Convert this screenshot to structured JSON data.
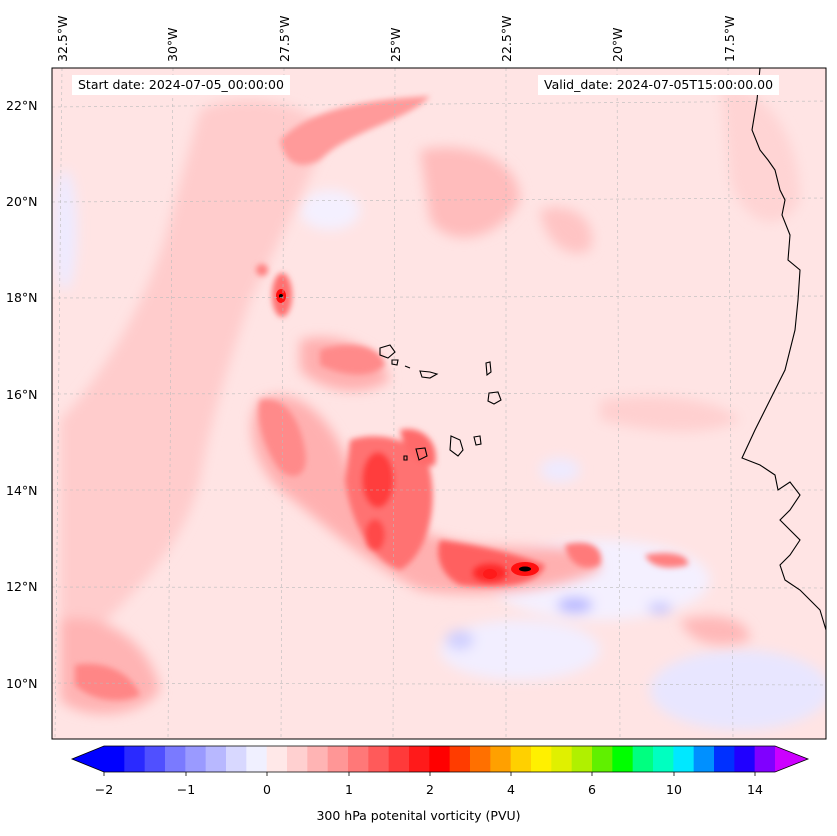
{
  "map": {
    "start_date_label": "Start date: 2024-07-05_00:00:00",
    "valid_date_label": "Valid_date: 2024-07-05T15:00:00.00",
    "longitude_labels": [
      "32.5°W",
      "30°W",
      "27.5°W",
      "25°W",
      "22.5°W",
      "20°W",
      "17.5°W"
    ],
    "latitude_labels": [
      "22°N",
      "20°N",
      "18°N",
      "16°N",
      "14°N",
      "12°N",
      "10°N"
    ]
  },
  "colorbar": {
    "label": "300 hPa potenital vorticity (PVU)",
    "tick_labels": [
      "−2",
      "−1",
      "0",
      "1",
      "2",
      "4",
      "6",
      "10",
      "14"
    ],
    "colors": [
      "#0000ff",
      "#2a2aff",
      "#5050ff",
      "#7a7aff",
      "#9a9aff",
      "#b8b8ff",
      "#d8d8ff",
      "#f0f0ff",
      "#ffe8e8",
      "#ffd0d0",
      "#ffb4b4",
      "#ff9696",
      "#ff7878",
      "#ff5a5a",
      "#ff3a3a",
      "#ff1a1a",
      "#ff0000",
      "#ff3c00",
      "#ff7000",
      "#ffa000",
      "#ffd000",
      "#fff000",
      "#e0f000",
      "#b0f000",
      "#60f000",
      "#00ff00",
      "#00ff80",
      "#00ffc0",
      "#00e8ff",
      "#0090ff",
      "#0030ff",
      "#2000ff",
      "#8000ff"
    ],
    "under_color": "#0000ff",
    "over_color": "#cc00ff"
  }
}
